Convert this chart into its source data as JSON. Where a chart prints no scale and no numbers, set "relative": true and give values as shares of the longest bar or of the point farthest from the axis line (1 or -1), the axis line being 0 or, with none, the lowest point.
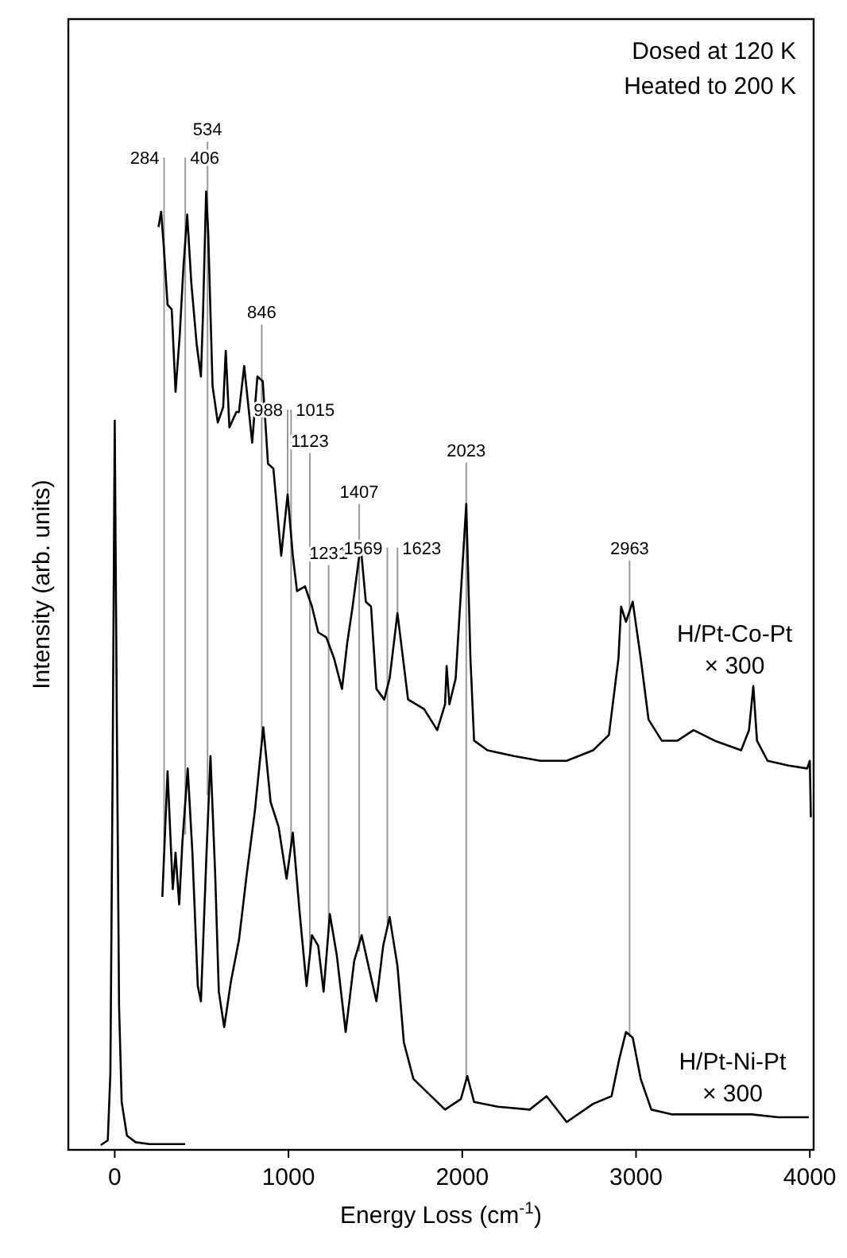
{
  "chart_data": {
    "type": "line",
    "xlabel": "Energy Loss (cm$^{-1}$)",
    "ylabel": "Intensity (arb. units)",
    "relative": true,
    "tick_labels": "x",
    "legend": false,
    "grid": false,
    "marker": "none",
    "line_style": "solid",
    "xlim": [
      -267,
      4022
    ],
    "xticks": [
      0,
      1000,
      2000,
      3000,
      4000
    ],
    "series": [
      {
        "name": "H/Pt-Co-Pt\n× 300",
        "color": "#000000",
        "x": [
          252,
          267,
          283,
          304,
          328,
          350,
          374,
          395,
          417,
          441,
          472,
          496,
          508,
          526,
          538,
          563,
          593,
          624,
          639,
          660,
          700,
          715,
          745,
          791,
          821,
          852,
          882,
          913,
          958,
          995,
          1025,
          1049,
          1095,
          1135,
          1171,
          1217,
          1262,
          1308,
          1338,
          1369,
          1415,
          1445,
          1475,
          1506,
          1551,
          1582,
          1627,
          1688,
          1780,
          1856,
          1901,
          1910,
          1926,
          1962,
          2023,
          2047,
          2068,
          2145,
          2297,
          2449,
          2601,
          2753,
          2844,
          2899,
          2914,
          2942,
          2981,
          3027,
          3072,
          3148,
          3239,
          3331,
          3452,
          3605,
          3650,
          3675,
          3696,
          3757,
          3878,
          3985,
          4000,
          4006
        ],
        "values": [
          0.963,
          0.979,
          0.941,
          0.882,
          0.877,
          0.791,
          0.85,
          0.92,
          0.976,
          0.904,
          0.84,
          0.807,
          0.872,
          1.0,
          0.957,
          0.797,
          0.759,
          0.775,
          0.834,
          0.754,
          0.77,
          0.77,
          0.818,
          0.738,
          0.807,
          0.802,
          0.716,
          0.711,
          0.62,
          0.684,
          0.62,
          0.583,
          0.588,
          0.567,
          0.54,
          0.535,
          0.513,
          0.481,
          0.529,
          0.567,
          0.631,
          0.572,
          0.567,
          0.481,
          0.47,
          0.492,
          0.56,
          0.47,
          0.46,
          0.438,
          0.465,
          0.505,
          0.465,
          0.492,
          0.674,
          0.513,
          0.427,
          0.417,
          0.411,
          0.406,
          0.406,
          0.417,
          0.433,
          0.513,
          0.567,
          0.551,
          0.572,
          0.513,
          0.449,
          0.427,
          0.427,
          0.438,
          0.427,
          0.417,
          0.438,
          0.484,
          0.427,
          0.406,
          0.401,
          0.398,
          0.406,
          0.347
        ]
      },
      {
        "name": "H/Pt-Ni-Pt\n× 300",
        "color": "#000000",
        "x": [
          274,
          304,
          334,
          350,
          371,
          389,
          420,
          447,
          478,
          496,
          526,
          551,
          578,
          599,
          630,
          669,
          715,
          760,
          806,
          855,
          897,
          943,
          989,
          1025,
          1065,
          1104,
          1135,
          1171,
          1202,
          1238,
          1278,
          1329,
          1378,
          1421,
          1460,
          1506,
          1545,
          1582,
          1627,
          1664,
          1719,
          1810,
          1901,
          1992,
          2029,
          2068,
          2205,
          2388,
          2485,
          2601,
          2753,
          2859,
          2905,
          2942,
          2981,
          3027,
          3088,
          3209,
          3513,
          3665,
          3818,
          3994
        ],
        "values": [
          0.264,
          0.395,
          0.272,
          0.31,
          0.256,
          0.32,
          0.398,
          0.31,
          0.171,
          0.155,
          0.299,
          0.411,
          0.288,
          0.165,
          0.128,
          0.176,
          0.219,
          0.288,
          0.353,
          0.441,
          0.363,
          0.337,
          0.283,
          0.331,
          0.246,
          0.171,
          0.224,
          0.213,
          0.165,
          0.246,
          0.203,
          0.123,
          0.197,
          0.224,
          0.192,
          0.155,
          0.213,
          0.243,
          0.192,
          0.112,
          0.074,
          0.058,
          0.042,
          0.053,
          0.077,
          0.05,
          0.045,
          0.042,
          0.056,
          0.029,
          0.048,
          0.056,
          0.096,
          0.123,
          0.117,
          0.074,
          0.042,
          0.037,
          0.037,
          0.037,
          0.034,
          0.034
        ]
      },
      {
        "color": "#000000",
        "x": [
          -80,
          -40,
          -25,
          -12,
          0,
          12,
          25,
          40,
          70,
          120,
          200,
          405
        ],
        "values": [
          0.005,
          0.01,
          0.08,
          0.4,
          0.761,
          0.45,
          0.15,
          0.05,
          0.015,
          0.008,
          0.006,
          0.006
        ]
      }
    ],
    "annotations": [
      "Dosed at 120 K",
      "Heated to 200 K",
      {
        "text": "284",
        "x": 284,
        "y": 0.316
      },
      {
        "text": "406",
        "x": 406,
        "y": 0.329
      },
      {
        "text": "534",
        "x": 534,
        "y": 0.37
      },
      {
        "text": "846",
        "x": 846,
        "y": 0.423
      },
      {
        "text": "988",
        "x": 995,
        "y": 0.684
      },
      {
        "text": "1015",
        "x": 1015,
        "y": 0.316
      },
      {
        "text": "1123",
        "x": 1123,
        "y": 0.204
      },
      {
        "text": "1231",
        "x": 1231,
        "y": 0.23
      },
      {
        "text": "1407",
        "x": 1407,
        "y": 0.207
      },
      {
        "text": "1569",
        "x": 1569,
        "y": 0.236
      },
      {
        "text": "1623",
        "x": 1627,
        "y": 0.56
      },
      {
        "text": "2023",
        "x": 2023,
        "y": 0.073
      },
      {
        "text": "2963",
        "x": 2963,
        "y": 0.118
      }
    ]
  }
}
